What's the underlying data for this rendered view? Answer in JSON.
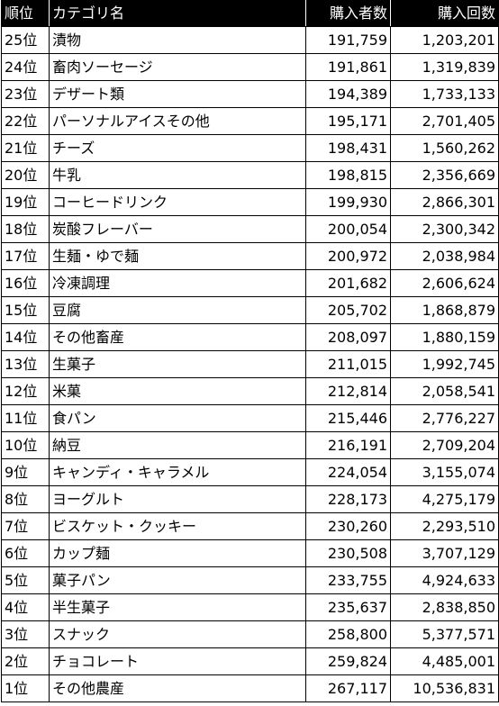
{
  "header": {
    "rank": "順位",
    "category": "カテゴリ名",
    "buyers": "購入者数",
    "purchases": "購入回数"
  },
  "rows": [
    {
      "rank": "25位",
      "category": "漬物",
      "buyers": "191,759",
      "purchases": "1,203,201"
    },
    {
      "rank": "24位",
      "category": "畜肉ソーセージ",
      "buyers": "191,861",
      "purchases": "1,319,839"
    },
    {
      "rank": "23位",
      "category": "デザート類",
      "buyers": "194,389",
      "purchases": "1,733,133"
    },
    {
      "rank": "22位",
      "category": "パーソナルアイスその他",
      "buyers": "195,171",
      "purchases": "2,701,405"
    },
    {
      "rank": "21位",
      "category": "チーズ",
      "buyers": "198,431",
      "purchases": "1,560,262"
    },
    {
      "rank": "20位",
      "category": "牛乳",
      "buyers": "198,815",
      "purchases": "2,356,669"
    },
    {
      "rank": "19位",
      "category": "コーヒードリンク",
      "buyers": "199,930",
      "purchases": "2,866,301"
    },
    {
      "rank": "18位",
      "category": "炭酸フレーバー",
      "buyers": "200,054",
      "purchases": "2,300,342"
    },
    {
      "rank": "17位",
      "category": "生麺・ゆで麺",
      "buyers": "200,972",
      "purchases": "2,038,984"
    },
    {
      "rank": "16位",
      "category": "冷凍調理",
      "buyers": "201,682",
      "purchases": "2,606,624"
    },
    {
      "rank": "15位",
      "category": "豆腐",
      "buyers": "205,702",
      "purchases": "1,868,879"
    },
    {
      "rank": "14位",
      "category": "その他畜産",
      "buyers": "208,097",
      "purchases": "1,880,159"
    },
    {
      "rank": "13位",
      "category": "生菓子",
      "buyers": "211,015",
      "purchases": "1,992,745"
    },
    {
      "rank": "12位",
      "category": "米菓",
      "buyers": "212,814",
      "purchases": "2,058,541"
    },
    {
      "rank": "11位",
      "category": "食パン",
      "buyers": "215,446",
      "purchases": "2,776,227"
    },
    {
      "rank": "10位",
      "category": "納豆",
      "buyers": "216,191",
      "purchases": "2,709,204"
    },
    {
      "rank": "9位",
      "category": "キャンディ・キャラメル",
      "buyers": "224,054",
      "purchases": "3,155,074"
    },
    {
      "rank": "8位",
      "category": "ヨーグルト",
      "buyers": "228,173",
      "purchases": "4,275,179"
    },
    {
      "rank": "7位",
      "category": "ビスケット・クッキー",
      "buyers": "230,260",
      "purchases": "2,293,510"
    },
    {
      "rank": "6位",
      "category": "カップ麺",
      "buyers": "230,508",
      "purchases": "3,707,129"
    },
    {
      "rank": "5位",
      "category": "菓子パン",
      "buyers": "233,755",
      "purchases": "4,924,633"
    },
    {
      "rank": "4位",
      "category": "半生菓子",
      "buyers": "235,637",
      "purchases": "2,838,850"
    },
    {
      "rank": "3位",
      "category": "スナック",
      "buyers": "258,800",
      "purchases": "5,377,571"
    },
    {
      "rank": "2位",
      "category": "チョコレート",
      "buyers": "259,824",
      "purchases": "4,485,001"
    },
    {
      "rank": "1位",
      "category": "その他農産",
      "buyers": "267,117",
      "purchases": "10,536,831"
    }
  ]
}
